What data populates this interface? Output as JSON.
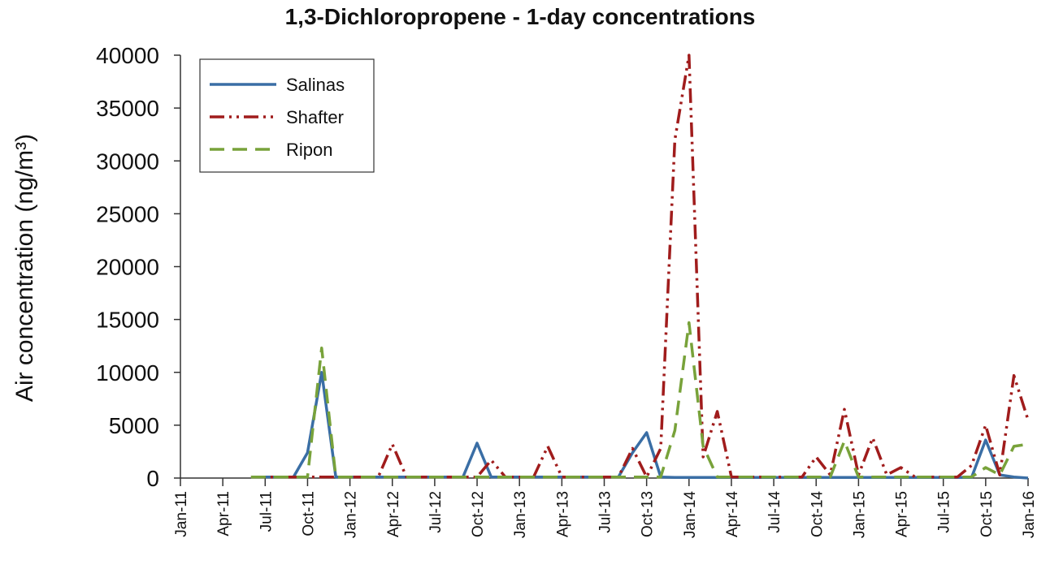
{
  "chart_data": {
    "type": "line",
    "title": "1,3-Dichloropropene - 1-day concentrations",
    "ylabel": "Air concentration (ng/m³)",
    "x": [
      "Jan-11",
      "Feb-11",
      "Mar-11",
      "Apr-11",
      "May-11",
      "Jun-11",
      "Jul-11",
      "Aug-11",
      "Sep-11",
      "Oct-11",
      "Nov-11",
      "Dec-11",
      "Jan-12",
      "Feb-12",
      "Mar-12",
      "Apr-12",
      "May-12",
      "Jun-12",
      "Jul-12",
      "Aug-12",
      "Sep-12",
      "Oct-12",
      "Nov-12",
      "Dec-12",
      "Jan-13",
      "Feb-13",
      "Mar-13",
      "Apr-13",
      "May-13",
      "Jun-13",
      "Jul-13",
      "Aug-13",
      "Sep-13",
      "Oct-13",
      "Nov-13",
      "Dec-13",
      "Jan-14",
      "Feb-14",
      "Mar-14",
      "Apr-14",
      "May-14",
      "Jun-14",
      "Jul-14",
      "Aug-14",
      "Sep-14",
      "Oct-14",
      "Nov-14",
      "Dec-14",
      "Jan-15",
      "Feb-15",
      "Mar-15",
      "Apr-15",
      "May-15",
      "Jun-15",
      "Jul-15",
      "Aug-15",
      "Sep-15",
      "Oct-15",
      "Nov-15",
      "Dec-15",
      "Jan-16"
    ],
    "xticks": [
      "Jan-11",
      "Apr-11",
      "Jul-11",
      "Oct-11",
      "Jan-12",
      "Apr-12",
      "Jul-12",
      "Oct-12",
      "Jan-13",
      "Apr-13",
      "Jul-13",
      "Oct-13",
      "Jan-14",
      "Apr-14",
      "Jul-14",
      "Oct-14",
      "Jan-15",
      "Apr-15",
      "Jul-15",
      "Oct-15",
      "Jan-16"
    ],
    "ylim": [
      0,
      40000
    ],
    "yticks": [
      0,
      5000,
      10000,
      15000,
      20000,
      25000,
      30000,
      35000,
      40000
    ],
    "legend": "upper left",
    "series": [
      {
        "name": "Salinas",
        "color": "#3a6ea5",
        "dash": "solid",
        "values": [
          null,
          null,
          null,
          null,
          null,
          100,
          100,
          100,
          100,
          2400,
          10000,
          100,
          100,
          100,
          100,
          100,
          100,
          100,
          100,
          100,
          100,
          3300,
          100,
          100,
          100,
          100,
          100,
          100,
          100,
          100,
          100,
          100,
          2400,
          4300,
          100,
          50,
          50,
          50,
          50,
          50,
          50,
          50,
          50,
          50,
          50,
          50,
          50,
          50,
          50,
          50,
          50,
          50,
          50,
          50,
          50,
          50,
          50,
          3600,
          300,
          100,
          0
        ]
      },
      {
        "name": "Shafter",
        "color": "#a01c1c",
        "dash": "dashdotdot",
        "values": [
          null,
          null,
          null,
          null,
          null,
          100,
          100,
          100,
          100,
          100,
          100,
          100,
          100,
          100,
          100,
          3200,
          100,
          100,
          100,
          100,
          100,
          100,
          1700,
          100,
          100,
          100,
          3000,
          100,
          100,
          100,
          100,
          100,
          2800,
          100,
          2800,
          32000,
          40000,
          2000,
          6300,
          100,
          100,
          100,
          100,
          100,
          100,
          2000,
          300,
          6500,
          300,
          3800,
          300,
          1000,
          100,
          100,
          100,
          100,
          1200,
          5000,
          300,
          9700,
          5500
        ]
      },
      {
        "name": "Ripon",
        "color": "#78a23a",
        "dash": "dashed",
        "values": [
          null,
          null,
          null,
          null,
          null,
          100,
          100,
          100,
          100,
          100,
          12300,
          100,
          100,
          100,
          100,
          100,
          100,
          100,
          100,
          100,
          100,
          100,
          100,
          100,
          100,
          100,
          100,
          100,
          100,
          100,
          100,
          100,
          100,
          100,
          100,
          4500,
          14700,
          3000,
          100,
          100,
          100,
          100,
          100,
          100,
          100,
          100,
          100,
          3500,
          100,
          100,
          100,
          100,
          100,
          100,
          100,
          100,
          100,
          1000,
          300,
          3000,
          3200
        ]
      }
    ]
  }
}
